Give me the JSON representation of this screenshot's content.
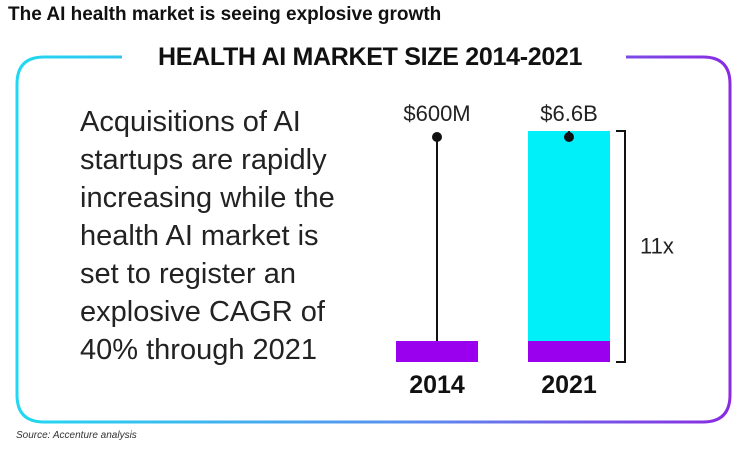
{
  "headline": "The AI health market is seeing explosive growth",
  "subtitle": "HEALTH AI MARKET SIZE 2014-2021",
  "body_lines": [
    "Acquisitions of AI",
    "startups are rapidly",
    "increasing while the",
    "health AI market is",
    "set to register an",
    "explosive CAGR of",
    "40% through 2021"
  ],
  "source": "Source: Accenture analysis",
  "colors": {
    "bar_base": "#9b00ee",
    "bar_growth": "#00f0fa",
    "frame_left": "#22d8f0",
    "frame_right": "#8a2be2"
  },
  "chart_data": {
    "type": "bar",
    "title": "HEALTH AI MARKET SIZE 2014-2021",
    "categories": [
      "2014",
      "2021"
    ],
    "values": [
      0.6,
      6.6
    ],
    "unit": "USD billions",
    "value_labels": [
      "$600M",
      "$6.6B"
    ],
    "annotation": "11x",
    "xlabel": "",
    "ylabel": ""
  }
}
